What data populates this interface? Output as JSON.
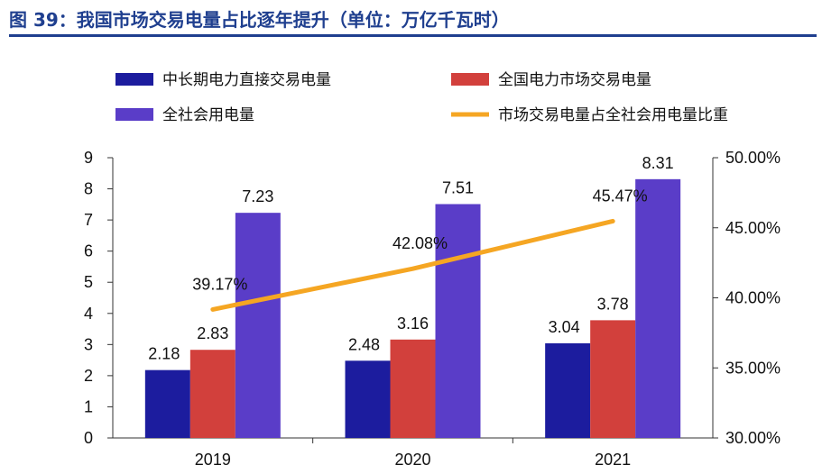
{
  "figure_title": "图 39：我国市场交易电量占比逐年提升（单位：万亿千瓦时）",
  "chart_data": {
    "type": "bar",
    "categories": [
      "2019",
      "2020",
      "2021"
    ],
    "series": [
      {
        "name": "中长期电力直接交易电量",
        "values": [
          2.18,
          2.48,
          3.04
        ],
        "labels": [
          "2.18",
          "2.48",
          "3.04"
        ],
        "color": "#1c1c9e",
        "axis": "left"
      },
      {
        "name": "全国电力市场交易电量",
        "values": [
          2.83,
          3.16,
          3.78
        ],
        "labels": [
          "2.83",
          "3.16",
          "3.78"
        ],
        "color": "#d2403c",
        "axis": "left"
      },
      {
        "name": "全社会用电量",
        "values": [
          7.23,
          7.51,
          8.31
        ],
        "labels": [
          "7.23",
          "7.51",
          "8.31"
        ],
        "color": "#5a3dc8",
        "axis": "left"
      },
      {
        "name": "市场交易电量占全社会用电量比重",
        "type": "line",
        "values": [
          39.17,
          42.08,
          45.47
        ],
        "labels": [
          "39.17%",
          "42.08%",
          "45.47%"
        ],
        "color": "#f5a623",
        "axis": "right"
      }
    ],
    "y_left": {
      "range": [
        0,
        9
      ],
      "ticks": [
        "0",
        "1",
        "2",
        "3",
        "4",
        "5",
        "6",
        "7",
        "8",
        "9"
      ]
    },
    "y_right": {
      "range": [
        30,
        50
      ],
      "ticks": [
        "30.00%",
        "35.00%",
        "40.00%",
        "45.00%",
        "50.00%"
      ]
    },
    "legend_position": "top",
    "grid": false
  }
}
